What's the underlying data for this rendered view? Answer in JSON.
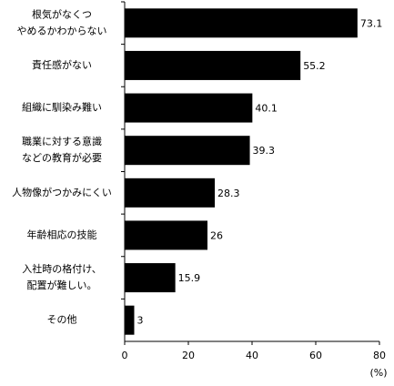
{
  "chart_data": {
    "type": "bar",
    "orientation": "horizontal",
    "categories": [
      [
        "根気がなくつ",
        "やめるかわからない"
      ],
      [
        "責任感がない"
      ],
      [
        "組織に馴染み難い"
      ],
      [
        "職業に対する意識",
        "などの教育が必要"
      ],
      [
        "人物像がつかみにくい"
      ],
      [
        "年齢相応の技能"
      ],
      [
        "入社時の格付け、",
        "配置が難しい。"
      ],
      [
        "その他"
      ]
    ],
    "values": [
      73.1,
      55.2,
      40.1,
      39.3,
      28.3,
      26,
      15.9,
      3
    ],
    "color": "#000000",
    "xlim": [
      0,
      80
    ],
    "xticks": [
      0,
      20,
      40,
      60,
      80
    ],
    "xlabel": "(%)",
    "grid": false
  }
}
